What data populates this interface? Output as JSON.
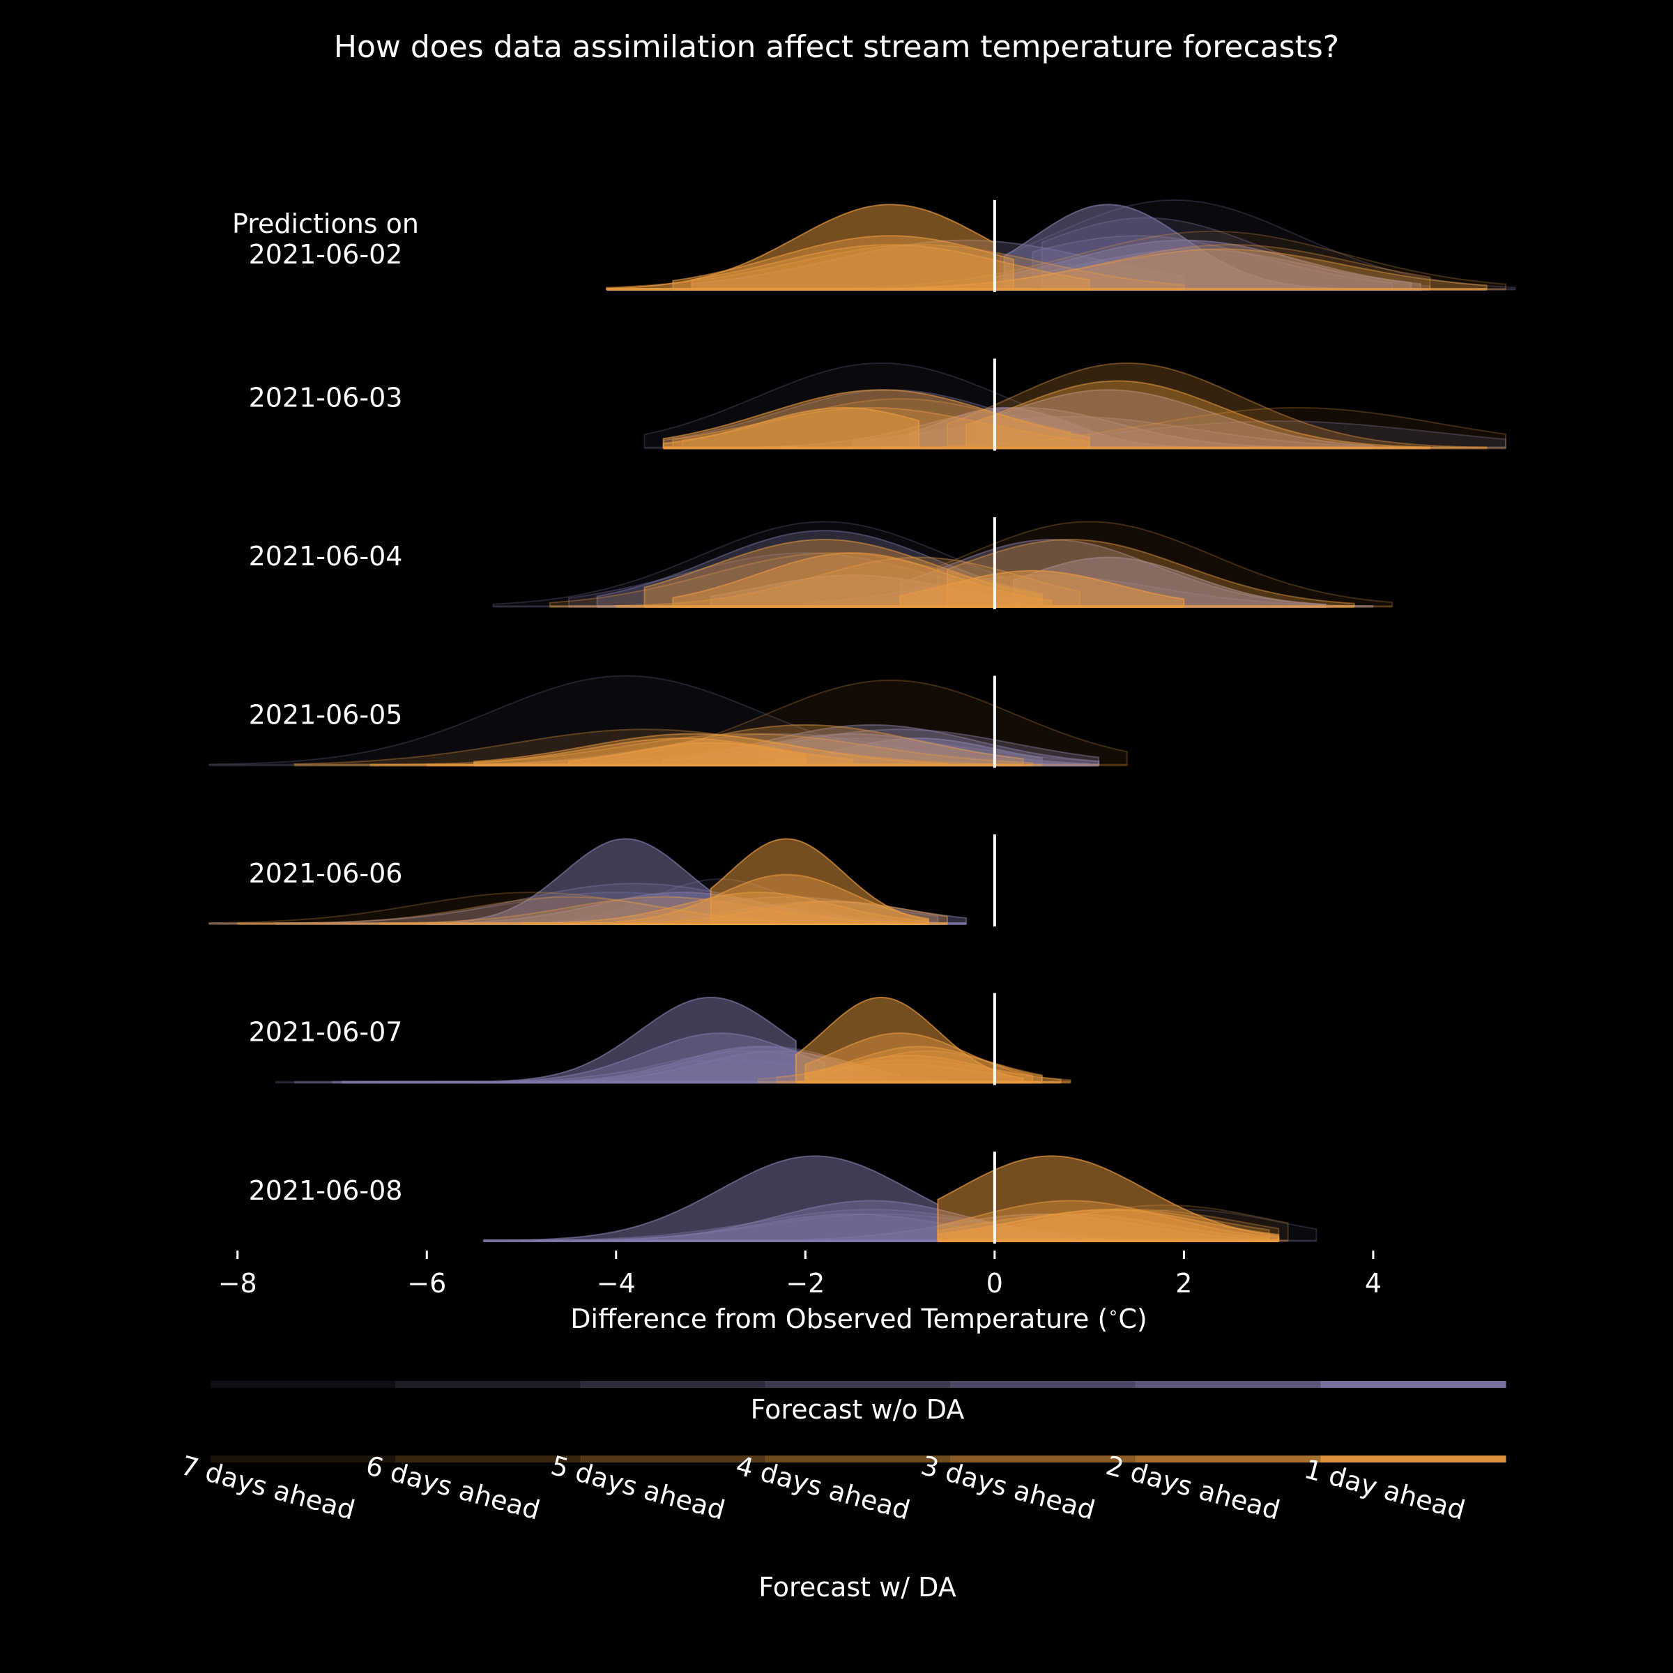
{
  "colors": {
    "background": "#000000",
    "text": "#ffffff",
    "no_da": "#7e77a6",
    "da": "#e89a40",
    "zero_line": "#ffffff"
  },
  "chart_data": {
    "type": "ridgeline-density",
    "title": "How does data assimilation affect stream temperature forecasts?",
    "xlabel": "Difference from Observed Temperature ($^\\circ$C)",
    "xlim": [
      -8.3,
      5.4
    ],
    "x_ticks": [
      -8,
      -6,
      -4,
      -2,
      0,
      2,
      4
    ],
    "x_tick_labels": [
      "−8",
      "−6",
      "−4",
      "−2",
      "0",
      "2",
      "4"
    ],
    "reference_line_x": 0,
    "lead_times": [
      "7 days ahead",
      "6 days ahead",
      "5 days ahead",
      "4 days ahead",
      "3 days ahead",
      "2 days ahead",
      "1 day ahead"
    ],
    "legend_no_da_label": "Forecast w/o DA",
    "legend_da_label": "Forecast w/ DA",
    "rows": [
      {
        "label": "Predictions on\n2021-06-02",
        "no_da": [
          [
            1.9,
            1.3,
            1.0,
            0.06,
            5.5
          ],
          [
            1.6,
            1.2,
            0.8,
            0.5,
            4.6
          ],
          [
            1.5,
            1.3,
            0.6,
            0.4,
            4.2
          ],
          [
            -0.3,
            1.4,
            0.55,
            -3.2,
            2.0
          ],
          [
            2.1,
            1.2,
            0.45,
            0.5,
            4.5
          ],
          [
            2.0,
            1.2,
            0.55,
            0.0,
            4.4
          ],
          [
            1.2,
            0.8,
            0.95,
            0.1,
            3.8
          ]
        ],
        "da": [
          [
            2.3,
            1.4,
            0.65,
            -1.5,
            5.4
          ],
          [
            2.5,
            1.3,
            0.5,
            -1.0,
            4.6
          ],
          [
            -0.8,
            1.3,
            0.5,
            -4.1,
            2.0
          ],
          [
            2.4,
            1.3,
            0.45,
            -2.5,
            5.2
          ],
          [
            -1.1,
            1.2,
            0.5,
            -3.2,
            1.0
          ],
          [
            -1.1,
            1.2,
            0.6,
            -3.4,
            0.2
          ],
          [
            -1.1,
            1.0,
            0.95,
            -4.1,
            0.0
          ]
        ]
      },
      {
        "label": "2021-06-03",
        "no_da": [
          [
            -1.2,
            1.3,
            0.95,
            -3.7,
            1.0
          ],
          [
            3.0,
            1.6,
            0.3,
            -1.5,
            5.4
          ],
          [
            -1.1,
            1.2,
            0.65,
            -3.5,
            1.0
          ],
          [
            0.8,
            1.3,
            0.35,
            -1.5,
            4.6
          ],
          [
            0.3,
            1.0,
            0.45,
            -2.5,
            4.0
          ],
          [
            1.2,
            1.1,
            0.65,
            -0.2,
            4.0
          ],
          [
            0.1,
            0.7,
            0.45,
            -0.9,
            2.5
          ]
        ],
        "da": [
          [
            3.2,
            1.5,
            0.45,
            -0.5,
            5.4
          ],
          [
            -1.0,
            1.2,
            0.55,
            -3.3,
            0.8
          ],
          [
            1.4,
            1.2,
            0.95,
            -0.5,
            5.2
          ],
          [
            -1.3,
            1.2,
            0.45,
            -3.4,
            1.0
          ],
          [
            1.3,
            1.1,
            0.75,
            -0.3,
            4.6
          ],
          [
            -1.2,
            1.2,
            0.65,
            -3.5,
            1.0
          ],
          [
            -1.6,
            0.9,
            0.45,
            -3.5,
            -0.8
          ]
        ]
      },
      {
        "label": "2021-06-04",
        "no_da": [
          [
            -1.8,
            1.3,
            0.95,
            -5.3,
            0.6
          ],
          [
            -2.0,
            1.3,
            0.6,
            -4.5,
            0.3
          ],
          [
            0.5,
            1.2,
            0.35,
            -2.0,
            4.0
          ],
          [
            -1.8,
            1.2,
            0.85,
            -4.2,
            0.5
          ],
          [
            0.6,
            1.1,
            0.75,
            -1.0,
            3.5
          ],
          [
            -1.5,
            1.0,
            0.35,
            -3.0,
            0.5
          ],
          [
            1.2,
            0.9,
            0.55,
            0.2,
            3.5
          ]
        ],
        "da": [
          [
            1.0,
            1.3,
            0.95,
            -0.6,
            4.2
          ],
          [
            -1.7,
            1.3,
            0.6,
            -4.7,
            0.5
          ],
          [
            -0.8,
            1.1,
            0.55,
            -4.0,
            0.9
          ],
          [
            0.8,
            1.2,
            0.75,
            -0.5,
            3.8
          ],
          [
            -1.8,
            1.2,
            0.75,
            -3.7,
            0.5
          ],
          [
            -1.5,
            1.0,
            0.6,
            -3.4,
            0.6
          ],
          [
            0.4,
            0.9,
            0.4,
            -1.0,
            2.0
          ]
        ]
      },
      {
        "label": "2021-06-05",
        "no_da": [
          [
            -3.9,
            1.4,
            1.0,
            -8.3,
            0.9
          ],
          [
            -1.5,
            1.3,
            0.3,
            -5.0,
            1.1
          ],
          [
            -2.3,
            1.2,
            0.35,
            -5.5,
            0.8
          ],
          [
            -1.0,
            1.2,
            0.4,
            -3.5,
            1.1
          ],
          [
            -1.3,
            1.1,
            0.45,
            -3.5,
            1.1
          ],
          [
            -1.5,
            1.0,
            0.35,
            -2.5,
            1.0
          ],
          [
            -0.8,
            0.8,
            0.3,
            -2.5,
            0.5
          ]
        ],
        "da": [
          [
            -1.1,
            1.3,
            0.95,
            -4.5,
            1.4
          ],
          [
            -3.7,
            1.4,
            0.4,
            -7.4,
            0.5
          ],
          [
            -2.6,
            1.3,
            0.35,
            -6.6,
            0.4
          ],
          [
            -2.0,
            1.2,
            0.45,
            -6.0,
            0.3
          ],
          [
            -3.2,
            1.1,
            0.35,
            -5.5,
            -0.5
          ],
          [
            -3.3,
            1.0,
            0.3,
            -5.5,
            -1.5
          ],
          [
            -3.0,
            0.8,
            0.25,
            -4.5,
            -2.0
          ]
        ]
      },
      {
        "label": "2021-06-06",
        "no_da": [
          [
            -2.9,
            0.7,
            0.5,
            -5.0,
            -0.5
          ],
          [
            -4.0,
            1.2,
            0.35,
            -8.3,
            -0.3
          ],
          [
            -3.8,
            1.2,
            0.45,
            -7.6,
            -0.6
          ],
          [
            -2.2,
            1.0,
            0.3,
            -5.5,
            -0.6
          ],
          [
            -1.8,
            0.9,
            0.25,
            -4.0,
            -0.3
          ],
          [
            -3.3,
            0.9,
            0.35,
            -6.0,
            -0.6
          ],
          [
            -3.9,
            0.65,
            0.95,
            -6.0,
            -3.0
          ]
        ],
        "da": [
          [
            -4.9,
            1.2,
            0.35,
            -8.3,
            -0.5
          ],
          [
            -4.5,
            1.0,
            0.3,
            -8.0,
            -1.0
          ],
          [
            -3.5,
            1.0,
            0.3,
            -6.5,
            -1.0
          ],
          [
            -1.7,
            0.8,
            0.25,
            -3.5,
            -0.5
          ],
          [
            -2.5,
            0.8,
            0.35,
            -5.0,
            -0.7
          ],
          [
            -2.2,
            0.7,
            0.55,
            -4.0,
            -0.7
          ],
          [
            -2.2,
            0.6,
            0.95,
            -3.0,
            -0.7
          ]
        ]
      },
      {
        "label": "2021-06-07",
        "no_da": [
          [
            -2.8,
            0.9,
            0.25,
            -7.6,
            -0.5
          ],
          [
            -2.6,
            0.9,
            0.35,
            -7.4,
            -0.5
          ],
          [
            -2.4,
            0.8,
            0.4,
            -7.0,
            -1.0
          ],
          [
            -2.3,
            0.8,
            0.35,
            -6.7,
            -1.2
          ],
          [
            -2.5,
            0.8,
            0.4,
            -6.5,
            -1.5
          ],
          [
            -2.9,
            0.8,
            0.55,
            -6.9,
            -1.8
          ],
          [
            -3.0,
            0.75,
            0.95,
            -5.5,
            -2.1
          ]
        ],
        "da": [
          [
            -1.0,
            0.8,
            0.2,
            -2.5,
            0.8
          ],
          [
            -0.9,
            0.8,
            0.25,
            -2.3,
            0.8
          ],
          [
            -0.7,
            0.7,
            0.35,
            -2.0,
            0.5
          ],
          [
            -0.9,
            0.75,
            0.3,
            -2.0,
            0.7
          ],
          [
            -0.8,
            0.7,
            0.4,
            -2.0,
            0.5
          ],
          [
            -1.0,
            0.7,
            0.55,
            -2.0,
            0.4
          ],
          [
            -1.2,
            0.6,
            0.95,
            -2.1,
            0.3
          ]
        ]
      },
      {
        "label": "2021-06-08",
        "no_da": [
          [
            2.0,
            1.0,
            0.35,
            -1.0,
            3.4
          ],
          [
            -1.2,
            1.2,
            0.3,
            -5.4,
            2.5
          ],
          [
            -1.3,
            1.2,
            0.35,
            -5.0,
            2.5
          ],
          [
            -1.5,
            1.0,
            0.3,
            -4.5,
            1.5
          ],
          [
            0.5,
            1.0,
            0.3,
            -2.0,
            3.0
          ],
          [
            -1.3,
            1.0,
            0.45,
            -4.5,
            2.0
          ],
          [
            -1.9,
            1.0,
            0.95,
            -5.4,
            -0.6
          ]
        ],
        "da": [
          [
            1.8,
            1.1,
            0.4,
            -0.5,
            3.1
          ],
          [
            1.5,
            1.1,
            0.35,
            -0.5,
            3.0
          ],
          [
            1.3,
            1.1,
            0.35,
            -0.6,
            2.9
          ],
          [
            0.8,
            1.0,
            0.3,
            -0.6,
            2.9
          ],
          [
            0.8,
            1.0,
            0.45,
            -0.6,
            3.0
          ],
          [
            1.2,
            1.0,
            0.35,
            -0.6,
            3.0
          ],
          [
            0.6,
            1.0,
            0.95,
            -0.6,
            3.0
          ]
        ]
      }
    ]
  }
}
